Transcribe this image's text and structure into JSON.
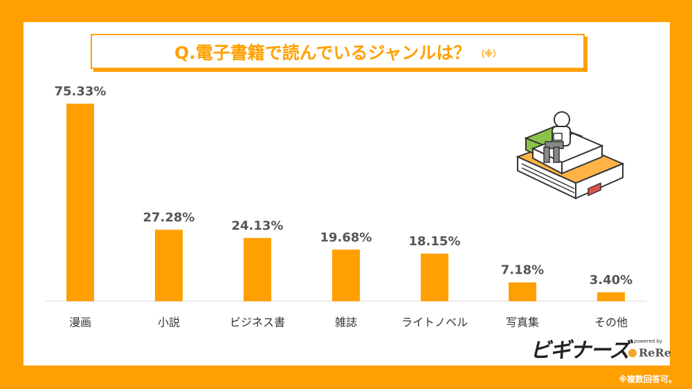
{
  "title": {
    "text": "Q.電子書籍で読んでいるジャンルは？",
    "note": "（※）"
  },
  "footnote": "※複数回答可。",
  "logo": {
    "main": "ビギナーズ",
    "powered_by": "powered by",
    "brand": "ReRe"
  },
  "colors": {
    "accent": "#FFA000",
    "background": "#FFFFFF",
    "bar": "#FFA000",
    "text": "#555555"
  },
  "chart_data": {
    "type": "bar",
    "title": "Q.電子書籍で読んでいるジャンルは？",
    "categories": [
      "漫画",
      "小説",
      "ビジネス書",
      "雑誌",
      "ライトノベル",
      "写真集",
      "その他"
    ],
    "values": [
      75.33,
      27.28,
      24.13,
      19.68,
      18.15,
      7.18,
      3.4
    ],
    "value_labels": [
      "75.33%",
      "27.28%",
      "24.13%",
      "19.68%",
      "18.15%",
      "7.18%",
      "3.40%"
    ],
    "unit": "%",
    "ylim": [
      0,
      75.33
    ],
    "grid": false,
    "legend": "none"
  }
}
